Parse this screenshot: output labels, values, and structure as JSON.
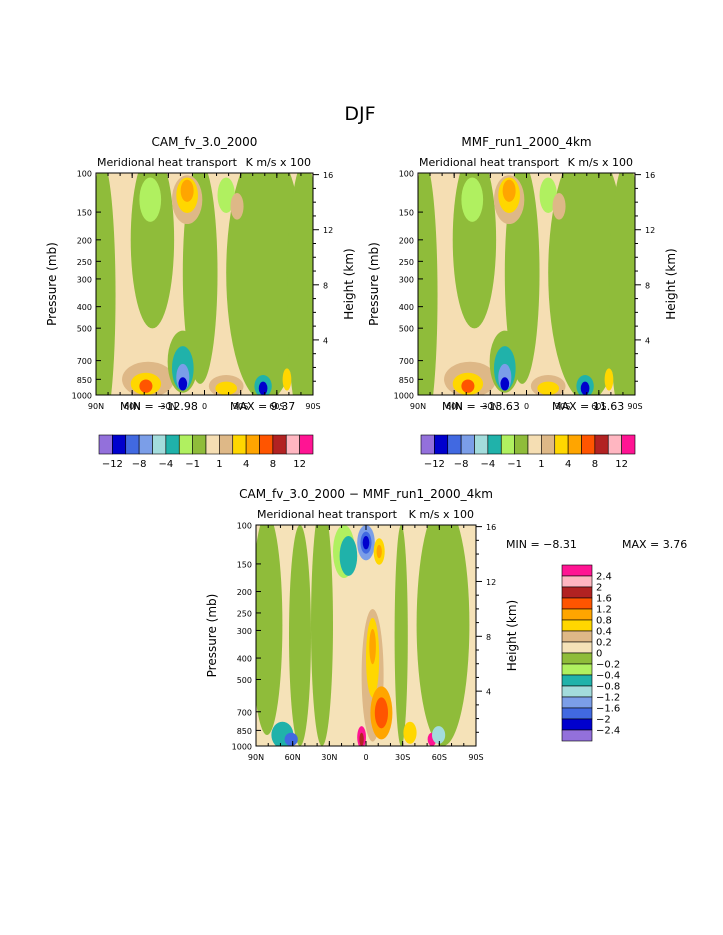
{
  "page_title": "DJF",
  "chart_data": [
    {
      "type": "heatmap",
      "title": "CAM_fv_3.0_2000",
      "subtitle_left": "Meridional heat transport",
      "subtitle_right": "K m/s x 100",
      "ylabel": "Pressure (mb)",
      "ylabel_right": "Height (km)",
      "x_ticks": [
        "90N",
        "60N",
        "30N",
        "0",
        "30S",
        "60S",
        "90S"
      ],
      "y_ticks": [
        "100",
        "150",
        "200",
        "250",
        "300",
        "400",
        "500",
        "700",
        "850",
        "1000"
      ],
      "y_ticks_right": [
        "16",
        "12",
        "8",
        "4"
      ],
      "min_text": "MIN = −12.98",
      "max_text": "MAX =    9.37",
      "colorbar_ticks": [
        "−12",
        "−8",
        "−4",
        "−1",
        "1",
        "4",
        "8",
        "12"
      ]
    },
    {
      "type": "heatmap",
      "title": "MMF_run1_2000_4km",
      "subtitle_left": "Meridional heat transport",
      "subtitle_right": "K m/s x 100",
      "ylabel": "Pressure (mb)",
      "ylabel_right": "Height (km)",
      "x_ticks": [
        "90N",
        "60N",
        "30N",
        "0",
        "30S",
        "60S",
        "90S"
      ],
      "y_ticks": [
        "100",
        "150",
        "200",
        "250",
        "300",
        "400",
        "500",
        "700",
        "850",
        "1000"
      ],
      "y_ticks_right": [
        "16",
        "12",
        "8",
        "4"
      ],
      "min_text": "MIN = −13.63",
      "max_text": "MAX =  11.63",
      "colorbar_ticks": [
        "−12",
        "−8",
        "−4",
        "−1",
        "1",
        "4",
        "8",
        "12"
      ]
    },
    {
      "type": "heatmap",
      "title": "CAM_fv_3.0_2000 − MMF_run1_2000_4km",
      "subtitle_left": "Meridional heat transport",
      "subtitle_right": "K m/s x 100",
      "ylabel": "Pressure (mb)",
      "ylabel_right": "Height (km)",
      "x_ticks": [
        "90N",
        "60N",
        "30N",
        "0",
        "30S",
        "60S",
        "90S"
      ],
      "y_ticks": [
        "100",
        "150",
        "200",
        "250",
        "300",
        "400",
        "500",
        "700",
        "850",
        "1000"
      ],
      "y_ticks_right": [
        "16",
        "12",
        "8",
        "4"
      ],
      "min_text": "MIN =   −8.31",
      "max_text": "MAX =    3.76",
      "colorbar_ticks": [
        "2.4",
        "2",
        "1.6",
        "1.2",
        "0.8",
        "0.4",
        "0.2",
        "0",
        "−0.2",
        "−0.4",
        "−0.8",
        "−1.2",
        "−1.6",
        "−2",
        "−2.4"
      ]
    }
  ],
  "colors": {
    "palette_top": [
      "#9370db",
      "#0000cd",
      "#4169e1",
      "#7b9ee8",
      "#a3dcdc",
      "#20b2aa",
      "#b0f060",
      "#8fbc3a",
      "#f5deb3",
      "#deb887",
      "#ffd700",
      "#ffa500",
      "#ff5500",
      "#b22222",
      "#ffb6c1",
      "#ff1493"
    ],
    "palette_diff_top_to_bottom": [
      "#ff1493",
      "#ffb6c1",
      "#b22222",
      "#ff5500",
      "#ffa500",
      "#ffd700",
      "#deb887",
      "#f5e2b8",
      "#8fbc3a",
      "#b0f060",
      "#20b2aa",
      "#a3dcdc",
      "#7b9ee8",
      "#4169e1",
      "#0000cd",
      "#9370db"
    ]
  }
}
